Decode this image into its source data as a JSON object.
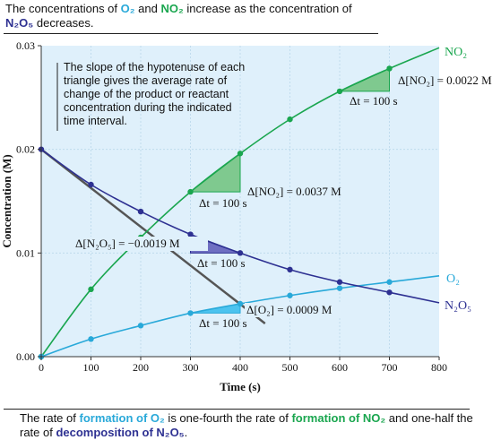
{
  "caption_top": {
    "p1": "The concentrations of ",
    "o2": "O₂",
    "p2": " and ",
    "no2": "NO₂",
    "p3": " increase as the concentration of ",
    "n2o5": "N₂O₅",
    "p4": " decreases."
  },
  "caption_bottom": {
    "p1": "The rate of ",
    "o2_phrase": "formation of O₂",
    "p2": " is one-fourth the rate of ",
    "no2_phrase": "formation of NO₂",
    "p3": " and one-half the rate of ",
    "n2o5_phrase": "decomposition of N₂O₅",
    "p4": "."
  },
  "note": [
    "The slope of the hypotenuse of each",
    "triangle gives the average rate of",
    "change of the product or reactant",
    "concentration during the indicated",
    "time interval."
  ],
  "colors": {
    "panel_bg": "#dff0fb",
    "no2": "#1aa64f",
    "no2_fill": "#7fc98f",
    "o2": "#29a9d9",
    "o2_fill": "#4cc3ef",
    "n2o5": "#2e3192",
    "n2o5_fill": "#6f6fc2",
    "tangent": "#555555"
  },
  "chart_data": {
    "type": "line",
    "xlabel": "Time (s)",
    "ylabel": "Concentration (M)",
    "xlim": [
      0,
      800
    ],
    "ylim": [
      0,
      0.03
    ],
    "x_ticks": [
      "0",
      "100",
      "200",
      "300",
      "400",
      "500",
      "600",
      "700",
      "800"
    ],
    "y_ticks": [
      "0.00",
      "0.01",
      "0.02",
      "0.03"
    ],
    "series": [
      {
        "name": "NO₂",
        "key": "no2",
        "x": [
          0,
          100,
          200,
          300,
          400,
          500,
          600,
          700,
          800
        ],
        "values": [
          0.0,
          0.0065,
          0.0115,
          0.0159,
          0.0196,
          0.0229,
          0.0256,
          0.0278,
          0.0298
        ]
      },
      {
        "name": "O₂",
        "key": "o2",
        "x": [
          0,
          100,
          200,
          300,
          400,
          500,
          600,
          700,
          800
        ],
        "values": [
          0.0,
          0.0017,
          0.003,
          0.0042,
          0.0051,
          0.0059,
          0.0066,
          0.0072,
          0.0078
        ]
      },
      {
        "name": "N₂O₅",
        "key": "n2o5",
        "x": [
          0,
          100,
          200,
          300,
          400,
          500,
          600,
          700,
          800
        ],
        "values": [
          0.02,
          0.0166,
          0.014,
          0.0118,
          0.01,
          0.0084,
          0.0072,
          0.0062,
          0.0052
        ]
      }
    ],
    "triangles": [
      {
        "key": "no2",
        "x1": 300,
        "x2": 400,
        "y1": 0.0159,
        "y2": 0.0196,
        "conc_label": "Δ[NO₂] = 0.0037 M",
        "time_label": "Δt = 100 s"
      },
      {
        "key": "no2",
        "x1": 600,
        "x2": 700,
        "y1": 0.0256,
        "y2": 0.0278,
        "conc_label": "Δ[NO₂] = 0.0022 M",
        "time_label": "Δt = 100 s"
      },
      {
        "key": "n2o5",
        "x1": 300,
        "x2": 400,
        "y1": 0.0118,
        "y2": 0.01,
        "conc_label": "Δ[N₂O₅] = −0.0019 M",
        "time_label": "Δt = 100 s"
      },
      {
        "key": "o2",
        "x1": 300,
        "x2": 400,
        "y1": 0.0042,
        "y2": 0.0051,
        "conc_label": "Δ[O₂] = 0.0009 M",
        "time_label": "Δt = 100 s"
      }
    ],
    "tangent": {
      "x1": 0,
      "y1": 0.02,
      "x2": 450,
      "y2": 0.0032
    }
  }
}
